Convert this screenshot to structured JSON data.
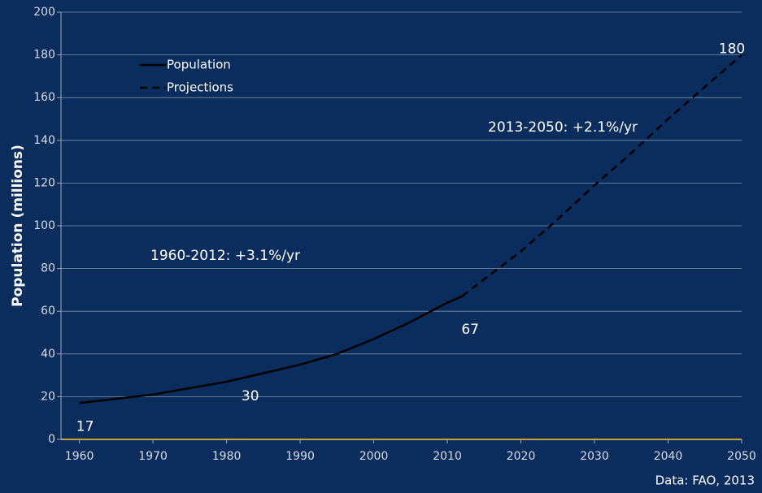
{
  "chart_data": {
    "type": "line",
    "y_label": "Population (millions)",
    "source": "Data: FAO, 2013",
    "annotations": [
      "1960-2012: +3.1%/yr",
      "2013-2050: +2.1%/yr"
    ],
    "series": [
      {
        "name": "Population",
        "color": "#000000",
        "dashed": false,
        "x": [
          1960,
          1965,
          1970,
          1975,
          1980,
          1985,
          1990,
          1995,
          2000,
          2005,
          2010,
          2012
        ],
        "values": [
          17,
          19,
          21,
          24,
          27,
          31,
          35,
          40,
          47,
          55,
          64,
          67
        ]
      },
      {
        "name": "Projections",
        "color": "#000000",
        "dashed": true,
        "x": [
          2012,
          2015,
          2020,
          2025,
          2030,
          2035,
          2040,
          2045,
          2050
        ],
        "values": [
          67,
          75,
          88,
          103,
          119,
          134,
          150,
          165,
          180
        ]
      }
    ],
    "data_labels": [
      {
        "x": 1960,
        "y": 17
      },
      {
        "x": 1983,
        "y": 30
      },
      {
        "x": 2012,
        "y": 67
      },
      {
        "x": 2050,
        "y": 180
      }
    ],
    "baseline_color": "#c9a13b",
    "xlim": [
      1957.5,
      2050
    ],
    "xticks": [
      1960,
      1970,
      1980,
      1990,
      2000,
      2010,
      2020,
      2030,
      2040,
      2050
    ],
    "ylim": [
      0,
      200
    ],
    "yticks": [
      0,
      20,
      40,
      60,
      80,
      100,
      120,
      140,
      160,
      180,
      200
    ],
    "grid": true
  }
}
